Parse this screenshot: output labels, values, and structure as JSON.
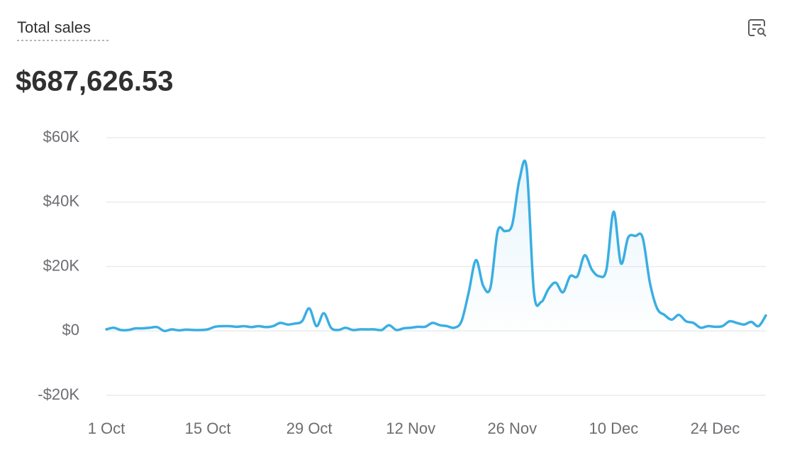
{
  "chart_data": {
    "type": "line",
    "title": "Total sales",
    "total": "$687,626.53",
    "categories": [
      "1 Oct",
      null,
      null,
      null,
      null,
      null,
      null,
      null,
      null,
      null,
      null,
      null,
      null,
      null,
      "15 Oct",
      null,
      null,
      null,
      null,
      null,
      null,
      null,
      null,
      null,
      null,
      null,
      null,
      null,
      "29 Oct",
      null,
      null,
      null,
      null,
      null,
      null,
      null,
      null,
      null,
      null,
      null,
      null,
      null,
      "12 Nov",
      null,
      null,
      null,
      null,
      null,
      null,
      null,
      null,
      null,
      null,
      null,
      null,
      null,
      "26 Nov",
      null,
      null,
      null,
      null,
      null,
      null,
      null,
      null,
      null,
      null,
      null,
      null,
      null,
      "10 Dec",
      null,
      null,
      null,
      null,
      null,
      null,
      null,
      null,
      null,
      null,
      null,
      null,
      null,
      "24 Dec",
      null,
      null,
      null,
      null,
      null,
      null,
      null
    ],
    "series": [
      {
        "color": "#3aaee3",
        "values": [
          500,
          1000,
          300,
          300,
          800,
          800,
          1000,
          1200,
          0,
          500,
          200,
          400,
          300,
          300,
          500,
          1300,
          1500,
          1500,
          1300,
          1500,
          1200,
          1500,
          1200,
          1500,
          2500,
          2000,
          2300,
          3000,
          7000,
          1500,
          5500,
          1000,
          300,
          1000,
          300,
          500,
          500,
          500,
          300,
          1800,
          300,
          800,
          1000,
          1300,
          1300,
          2500,
          1800,
          1500,
          1000,
          3000,
          12000,
          22000,
          14000,
          13500,
          31000,
          31000,
          33000,
          47000,
          50500,
          12000,
          9000,
          13000,
          15000,
          12000,
          17000,
          17000,
          23500,
          19000,
          17000,
          19000,
          37000,
          21000,
          29000,
          29500,
          29000,
          15000,
          7000,
          5000,
          3500,
          5000,
          3000,
          2500,
          1000,
          1500,
          1300,
          1500,
          3000,
          2500,
          2000,
          2800,
          1500,
          4800
        ]
      }
    ],
    "ylim": [
      -20000,
      60000
    ],
    "yticks": [
      {
        "value": -20000,
        "label": "-$20K"
      },
      {
        "value": 0,
        "label": "$0"
      },
      {
        "value": 20000,
        "label": "$20K"
      },
      {
        "value": 40000,
        "label": "$40K"
      },
      {
        "value": 60000,
        "label": "$60K"
      }
    ],
    "grid": true
  }
}
